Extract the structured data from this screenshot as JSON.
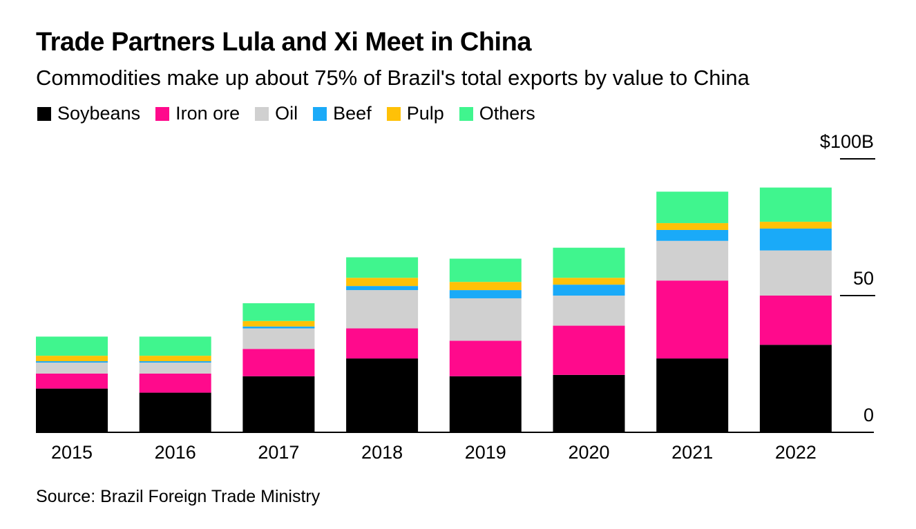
{
  "title": "Trade Partners Lula and Xi Meet in China",
  "subtitle": "Commodities make up about 75% of Brazil's total exports by value to China",
  "source": "Source: Brazil Foreign Trade Ministry",
  "colors": {
    "Soybeans": "#000000",
    "Iron ore": "#ff0a8c",
    "Oil": "#d0d0d0",
    "Beef": "#1aaaf8",
    "Pulp": "#ffc107",
    "Others": "#40f58e"
  },
  "chart_data": {
    "type": "bar",
    "stacked": true,
    "categories": [
      "2015",
      "2016",
      "2017",
      "2018",
      "2019",
      "2020",
      "2021",
      "2022"
    ],
    "series": [
      {
        "name": "Soybeans",
        "values": [
          16.0,
          14.5,
          20.5,
          27.0,
          20.5,
          21.0,
          27.0,
          32.0
        ]
      },
      {
        "name": "Iron ore",
        "values": [
          5.5,
          7.0,
          10.0,
          11.0,
          13.0,
          18.0,
          28.5,
          18.0
        ]
      },
      {
        "name": "Oil",
        "values": [
          4.0,
          4.0,
          7.5,
          14.0,
          15.5,
          11.0,
          14.5,
          16.5
        ]
      },
      {
        "name": "Beef",
        "values": [
          0.5,
          0.5,
          0.7,
          1.5,
          3.0,
          4.0,
          4.0,
          8.0
        ]
      },
      {
        "name": "Pulp",
        "values": [
          2.0,
          2.0,
          2.0,
          3.0,
          3.0,
          2.5,
          2.5,
          2.5
        ]
      },
      {
        "name": "Others",
        "values": [
          7.0,
          7.0,
          6.5,
          7.5,
          8.5,
          11.0,
          11.5,
          12.5
        ]
      }
    ],
    "ylim": [
      0,
      100
    ],
    "yticks": [
      {
        "value": 0,
        "label": "0"
      },
      {
        "value": 50,
        "label": "50"
      },
      {
        "value": 100,
        "label": "$100B"
      }
    ],
    "legend_position": "top-left",
    "grid": false
  }
}
